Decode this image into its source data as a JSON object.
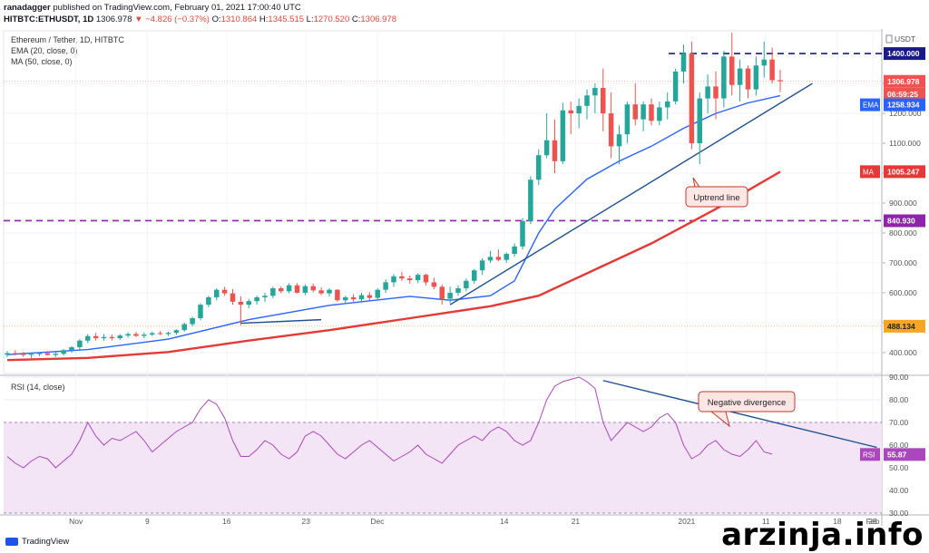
{
  "header": {
    "author": "ranadagger",
    "published": "published on TradingView.com, February 01, 2021 17:00:40 UTC",
    "symbol": "HITBTC:ETHUSDT, 1D",
    "last": "1306.978",
    "change": "−4.826 (−0.37%)",
    "ohlc_o_label": "O:",
    "ohlc_o": "1310.864",
    "ohlc_h_label": "H:",
    "ohlc_h": "1345.515",
    "ohlc_l_label": "L:",
    "ohlc_l": "1270.520",
    "ohlc_c_label": "C:",
    "ohlc_c": "1306.978"
  },
  "legend": {
    "pair": "Ethereum / Tether, 1D, HITBTC",
    "ema": "EMA (20, close, 0)",
    "ma": "MA (50, close, 0)",
    "rsi": "RSI (14, close)"
  },
  "colors": {
    "up": "#26a69a",
    "down": "#ef5350",
    "ema": "#2962ff",
    "ma": "#e53935",
    "rsi": "#ab47bc",
    "rsi_band": "#f3e5f5",
    "level_dash": "#1a1a8a",
    "support_dash": "#8e24aa",
    "trend": "#1e4f8f"
  },
  "annotations": {
    "uptrend": "Uptrend line",
    "divergence": "Negative divergence"
  },
  "price_axis": {
    "currency": "USDT",
    "ticks": [
      "1300.000",
      "1200.000",
      "1100.000",
      "1000.000",
      "900.000",
      "800.000",
      "700.000",
      "600.000",
      "500.000",
      "400.000"
    ]
  },
  "rsi_axis": {
    "ticks": [
      "90.00",
      "80.00",
      "70.00",
      "60.00",
      "50.00",
      "40.00",
      "30.00"
    ]
  },
  "tags": {
    "resistance": "1400.000",
    "last": "1306.978",
    "countdown": "06:59:25",
    "ema_label": "EMA",
    "ema": "1258.934",
    "ma_label": "MA",
    "ma": "1005.247",
    "support": "840.930",
    "low_line": "488.134",
    "rsi_label": "RSI",
    "rsi": "55.87"
  },
  "x_axis": {
    "labels": [
      "Nov",
      "9",
      "16",
      "23",
      "Dec",
      "14",
      "21",
      "2021",
      "11",
      "18",
      "25",
      "Feb"
    ]
  },
  "footer": {
    "brand": "TradingView",
    "watermark": "arzinja.info"
  },
  "chart_data": {
    "type": "candlestick",
    "ohlc": [
      [
        393,
        405,
        385,
        398
      ],
      [
        398,
        408,
        390,
        395
      ],
      [
        395,
        402,
        386,
        392
      ],
      [
        392,
        400,
        380,
        395
      ],
      [
        395,
        402,
        388,
        398
      ],
      [
        398,
        405,
        390,
        392
      ],
      [
        392,
        402,
        385,
        396
      ],
      [
        396,
        412,
        390,
        408
      ],
      [
        408,
        422,
        400,
        418
      ],
      [
        418,
        445,
        410,
        440
      ],
      [
        440,
        462,
        432,
        455
      ],
      [
        455,
        466,
        440,
        448
      ],
      [
        448,
        462,
        440,
        452
      ],
      [
        452,
        460,
        440,
        448
      ],
      [
        448,
        462,
        442,
        457
      ],
      [
        457,
        468,
        450,
        462
      ],
      [
        462,
        470,
        452,
        456
      ],
      [
        456,
        468,
        448,
        460
      ],
      [
        460,
        470,
        455,
        465
      ],
      [
        465,
        472,
        458,
        462
      ],
      [
        462,
        470,
        455,
        466
      ],
      [
        466,
        478,
        460,
        475
      ],
      [
        475,
        500,
        470,
        495
      ],
      [
        495,
        520,
        488,
        515
      ],
      [
        515,
        565,
        508,
        560
      ],
      [
        560,
        590,
        552,
        585
      ],
      [
        585,
        615,
        575,
        610
      ],
      [
        610,
        620,
        590,
        598
      ],
      [
        598,
        612,
        560,
        570
      ],
      [
        570,
        588,
        492,
        560
      ],
      [
        560,
        580,
        548,
        572
      ],
      [
        572,
        590,
        560,
        585
      ],
      [
        585,
        600,
        570,
        590
      ],
      [
        590,
        620,
        582,
        615
      ],
      [
        615,
        622,
        598,
        605
      ],
      [
        605,
        632,
        598,
        625
      ],
      [
        625,
        632,
        598,
        600
      ],
      [
        600,
        628,
        592,
        622
      ],
      [
        622,
        630,
        602,
        608
      ],
      [
        608,
        618,
        592,
        598
      ],
      [
        598,
        615,
        588,
        610
      ],
      [
        610,
        612,
        570,
        575
      ],
      [
        575,
        590,
        565,
        585
      ],
      [
        585,
        595,
        570,
        578
      ],
      [
        578,
        600,
        570,
        592
      ],
      [
        592,
        602,
        575,
        583
      ],
      [
        583,
        615,
        575,
        610
      ],
      [
        610,
        645,
        600,
        635
      ],
      [
        635,
        662,
        620,
        655
      ],
      [
        655,
        670,
        640,
        648
      ],
      [
        648,
        658,
        630,
        642
      ],
      [
        642,
        665,
        632,
        660
      ],
      [
        660,
        664,
        625,
        635
      ],
      [
        635,
        650,
        612,
        620
      ],
      [
        620,
        628,
        560,
        580
      ],
      [
        580,
        620,
        565,
        600
      ],
      [
        600,
        625,
        590,
        615
      ],
      [
        615,
        648,
        605,
        640
      ],
      [
        640,
        680,
        630,
        675
      ],
      [
        675,
        715,
        660,
        708
      ],
      [
        708,
        740,
        700,
        720
      ],
      [
        720,
        745,
        705,
        710
      ],
      [
        710,
        735,
        700,
        730
      ],
      [
        730,
        765,
        720,
        755
      ],
      [
        755,
        850,
        745,
        840
      ],
      [
        840,
        990,
        830,
        978
      ],
      [
        978,
        1080,
        960,
        1060
      ],
      [
        1060,
        1200,
        1050,
        1110
      ],
      [
        1110,
        1180,
        1000,
        1040
      ],
      [
        1040,
        1235,
        1030,
        1210
      ],
      [
        1210,
        1240,
        1130,
        1200
      ],
      [
        1200,
        1250,
        1150,
        1225
      ],
      [
        1225,
        1280,
        1180,
        1260
      ],
      [
        1260,
        1300,
        1200,
        1285
      ],
      [
        1285,
        1350,
        1140,
        1200
      ],
      [
        1200,
        1270,
        1050,
        1090
      ],
      [
        1090,
        1160,
        1030,
        1130
      ],
      [
        1130,
        1240,
        1100,
        1230
      ],
      [
        1230,
        1300,
        1160,
        1180
      ],
      [
        1180,
        1240,
        1140,
        1230
      ],
      [
        1230,
        1250,
        1160,
        1175
      ],
      [
        1175,
        1240,
        1160,
        1220
      ],
      [
        1220,
        1270,
        1180,
        1240
      ],
      [
        1240,
        1350,
        1230,
        1340
      ],
      [
        1340,
        1430,
        1300,
        1400
      ],
      [
        1400,
        1440,
        1080,
        1100
      ],
      [
        1100,
        1270,
        1030,
        1250
      ],
      [
        1250,
        1330,
        1200,
        1290
      ],
      [
        1290,
        1340,
        1180,
        1250
      ],
      [
        1250,
        1410,
        1220,
        1390
      ],
      [
        1390,
        1470,
        1260,
        1295
      ],
      [
        1295,
        1380,
        1240,
        1350
      ],
      [
        1350,
        1360,
        1250,
        1280
      ],
      [
        1280,
        1390,
        1260,
        1360
      ],
      [
        1360,
        1440,
        1320,
        1380
      ],
      [
        1380,
        1420,
        1300,
        1311
      ],
      [
        1311,
        1346,
        1271,
        1307
      ]
    ],
    "ema20": [
      [
        0,
        393
      ],
      [
        10,
        410
      ],
      [
        20,
        445
      ],
      [
        30,
        510
      ],
      [
        40,
        558
      ],
      [
        50,
        588
      ],
      [
        55,
        575
      ],
      [
        60,
        590
      ],
      [
        63,
        640
      ],
      [
        66,
        800
      ],
      [
        68,
        880
      ],
      [
        72,
        980
      ],
      [
        76,
        1040
      ],
      [
        80,
        1090
      ],
      [
        84,
        1150
      ],
      [
        88,
        1200
      ],
      [
        92,
        1235
      ],
      [
        96,
        1259
      ]
    ],
    "ma50": [
      [
        0,
        375
      ],
      [
        10,
        382
      ],
      [
        20,
        402
      ],
      [
        30,
        440
      ],
      [
        40,
        475
      ],
      [
        50,
        515
      ],
      [
        60,
        555
      ],
      [
        66,
        590
      ],
      [
        72,
        665
      ],
      [
        80,
        765
      ],
      [
        88,
        880
      ],
      [
        96,
        1005
      ]
    ],
    "trend_lines": [
      {
        "from": [
          55,
          560
        ],
        "to": [
          100,
          1300
        ]
      },
      {
        "from": [
          29,
          498
        ],
        "to": [
          39,
          510
        ]
      }
    ],
    "levels": {
      "resistance": 1400,
      "support": 840.93,
      "low_line": 488.134
    },
    "rsi": [
      55,
      52,
      50,
      53,
      55,
      54,
      50,
      53,
      56,
      62,
      70,
      64,
      60,
      63,
      62,
      64,
      66,
      62,
      57,
      60,
      63,
      66,
      68,
      70,
      76,
      80,
      78,
      72,
      62,
      55,
      55,
      58,
      62,
      60,
      56,
      54,
      57,
      64,
      66,
      64,
      60,
      56,
      54,
      57,
      60,
      62,
      59,
      56,
      53,
      55,
      57,
      60,
      56,
      54,
      52,
      56,
      60,
      62,
      64,
      62,
      66,
      68,
      66,
      62,
      60,
      62,
      70,
      80,
      86,
      88,
      89,
      90,
      88,
      85,
      70,
      62,
      66,
      70,
      68,
      66,
      68,
      72,
      74,
      70,
      60,
      54,
      56,
      60,
      62,
      58,
      56,
      55,
      58,
      62,
      57,
      56
    ],
    "rsi_range": [
      30,
      90
    ],
    "price_range": [
      330,
      1470
    ],
    "x_axis_labels_at": [
      5,
      14,
      24,
      34,
      43,
      59,
      68,
      82,
      92,
      101,
      110,
      120
    ],
    "divergence_lines": [
      {
        "from": [
          74,
          88.5
        ],
        "to": [
          108,
          59
        ]
      }
    ]
  }
}
